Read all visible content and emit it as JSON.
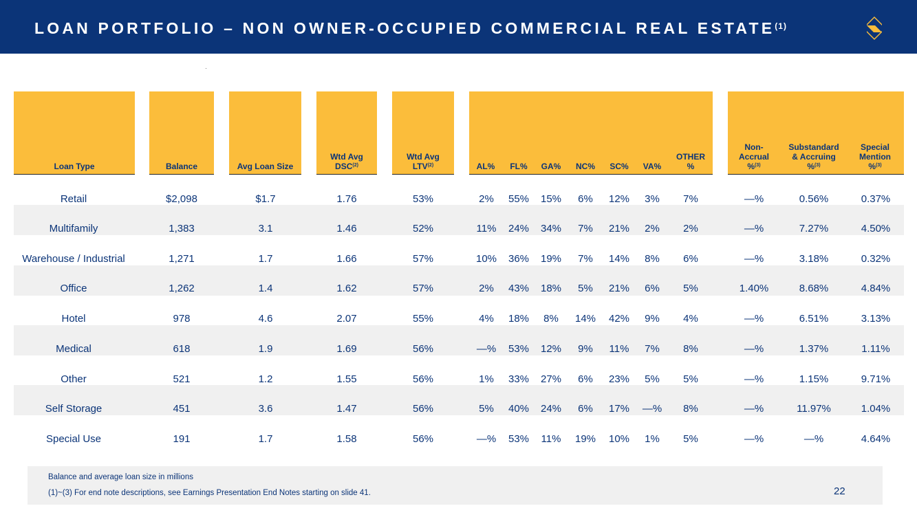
{
  "header": {
    "title": "LOAN PORTFOLIO – NON OWNER-OCCUPIED COMMERCIAL REAL ESTATE",
    "title_note": "(1)",
    "logo_icon": "s-brand-logo-icon",
    "colors": {
      "navy": "#0b3478",
      "gold": "#fbbd3b"
    }
  },
  "table": {
    "headers": {
      "loan_type": "Loan Type",
      "balance": "Balance",
      "avg_loan_size": "Avg Loan Size",
      "dsc_line1": "Wtd Avg",
      "dsc_line2": "DSC",
      "dsc_note": "(2)",
      "ltv_line1": "Wtd Avg",
      "ltv_line2": "LTV",
      "ltv_note": "(2)",
      "al": "AL%",
      "fl": "FL%",
      "ga": "GA%",
      "nc": "NC%",
      "sc": "SC%",
      "va": "VA%",
      "other_line1": "OTHER",
      "other_line2": "%",
      "nonaccrual_line1": "Non-",
      "nonaccrual_line2": "Accrual",
      "nonaccrual_line3": "%",
      "nonaccrual_note": "(3)",
      "substandard_line1": "Substandard",
      "substandard_line2": "& Accruing",
      "substandard_line3": "%",
      "substandard_note": "(3)",
      "special_line1": "Special",
      "special_line2": "Mention",
      "special_line3": "%",
      "special_note": "(3)"
    },
    "rows": [
      {
        "type": "Retail",
        "balance": "$2,098",
        "avg": "$1.7",
        "dsc": "1.76",
        "ltv": "53%",
        "al": "2%",
        "fl": "55%",
        "ga": "15%",
        "nc": "6%",
        "sc": "12%",
        "va": "3%",
        "other": "7%",
        "nonaccrual": "—%",
        "substandard": "0.56%",
        "special": "0.37%"
      },
      {
        "type": "Multifamily",
        "balance": "1,383",
        "avg": "3.1",
        "dsc": "1.46",
        "ltv": "52%",
        "al": "11%",
        "fl": "24%",
        "ga": "34%",
        "nc": "7%",
        "sc": "21%",
        "va": "2%",
        "other": "2%",
        "nonaccrual": "—%",
        "substandard": "7.27%",
        "special": "4.50%"
      },
      {
        "type": "Warehouse / Industrial",
        "balance": "1,271",
        "avg": "1.7",
        "dsc": "1.66",
        "ltv": "57%",
        "al": "10%",
        "fl": "36%",
        "ga": "19%",
        "nc": "7%",
        "sc": "14%",
        "va": "8%",
        "other": "6%",
        "nonaccrual": "—%",
        "substandard": "3.18%",
        "special": "0.32%"
      },
      {
        "type": "Office",
        "balance": "1,262",
        "avg": "1.4",
        "dsc": "1.62",
        "ltv": "57%",
        "al": "2%",
        "fl": "43%",
        "ga": "18%",
        "nc": "5%",
        "sc": "21%",
        "va": "6%",
        "other": "5%",
        "nonaccrual": "1.40%",
        "substandard": "8.68%",
        "special": "4.84%"
      },
      {
        "type": "Hotel",
        "balance": "978",
        "avg": "4.6",
        "dsc": "2.07",
        "ltv": "55%",
        "al": "4%",
        "fl": "18%",
        "ga": "8%",
        "nc": "14%",
        "sc": "42%",
        "va": "9%",
        "other": "4%",
        "nonaccrual": "—%",
        "substandard": "6.51%",
        "special": "3.13%"
      },
      {
        "type": "Medical",
        "balance": "618",
        "avg": "1.9",
        "dsc": "1.69",
        "ltv": "56%",
        "al": "—%",
        "fl": "53%",
        "ga": "12%",
        "nc": "9%",
        "sc": "11%",
        "va": "7%",
        "other": "8%",
        "nonaccrual": "—%",
        "substandard": "1.37%",
        "special": "1.11%"
      },
      {
        "type": "Other",
        "balance": "521",
        "avg": "1.2",
        "dsc": "1.55",
        "ltv": "56%",
        "al": "1%",
        "fl": "33%",
        "ga": "27%",
        "nc": "6%",
        "sc": "23%",
        "va": "5%",
        "other": "5%",
        "nonaccrual": "—%",
        "substandard": "1.15%",
        "special": "9.71%"
      },
      {
        "type": "Self Storage",
        "balance": "451",
        "avg": "3.6",
        "dsc": "1.47",
        "ltv": "56%",
        "al": "5%",
        "fl": "40%",
        "ga": "24%",
        "nc": "6%",
        "sc": "17%",
        "va": "—%",
        "other": "8%",
        "nonaccrual": "—%",
        "substandard": "11.97%",
        "special": "1.04%"
      },
      {
        "type": "Special Use",
        "balance": "191",
        "avg": "1.7",
        "dsc": "1.58",
        "ltv": "56%",
        "al": "—%",
        "fl": "53%",
        "ga": "11%",
        "nc": "19%",
        "sc": "10%",
        "va": "1%",
        "other": "5%",
        "nonaccrual": "—%",
        "substandard": "—%",
        "special": "4.64%"
      }
    ]
  },
  "footer": {
    "note1": "Balance and average loan size in millions",
    "note2": "(1)~(3)  For end note descriptions, see Earnings Presentation End Notes starting on slide 41.",
    "page_number": "22"
  }
}
